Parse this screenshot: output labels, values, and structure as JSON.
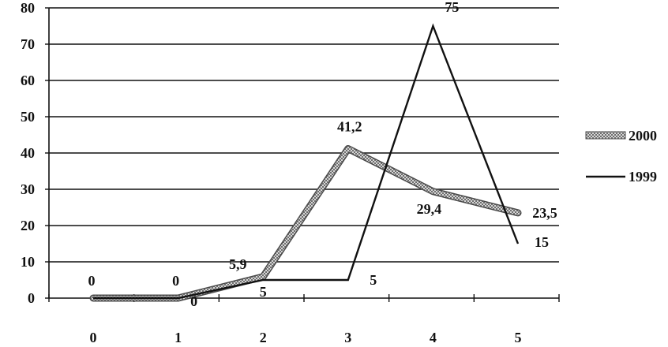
{
  "chart_data": {
    "type": "line",
    "x": [
      0,
      1,
      2,
      3,
      4,
      5
    ],
    "x_tick_labels": [
      "0",
      "1",
      "2",
      "3",
      "4",
      "5"
    ],
    "y_tick_labels": [
      "0",
      "10",
      "20",
      "30",
      "40",
      "50",
      "60",
      "70",
      "80"
    ],
    "ylim": [
      0,
      80
    ],
    "grid": "horizontal",
    "legend": "right",
    "series": [
      {
        "name": "2000",
        "style": "hatched-thick",
        "color": "#8a8a8a",
        "values": [
          0,
          0,
          5.9,
          41.2,
          29.4,
          23.5
        ],
        "labels": [
          "0",
          "0",
          "5,9",
          "41,2",
          "29,4",
          "23,5"
        ]
      },
      {
        "name": "1999",
        "style": "solid",
        "color": "#111111",
        "values": [
          0,
          0,
          5,
          5,
          75,
          15
        ],
        "labels": [
          "",
          "0",
          "5",
          "5",
          "75",
          "15"
        ]
      }
    ]
  }
}
